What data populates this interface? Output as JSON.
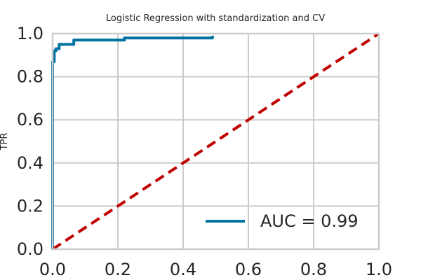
{
  "chart_data": {
    "type": "line",
    "title": "Logistic Regression with standardization and CV",
    "xlabel": "",
    "ylabel": "TPR",
    "xlim": [
      0.0,
      1.0
    ],
    "ylim": [
      0.0,
      1.0
    ],
    "xticks": [
      "0.0",
      "0.2",
      "0.4",
      "0.6",
      "0.8",
      "1.0"
    ],
    "yticks": [
      "0.0",
      "0.2",
      "0.4",
      "0.6",
      "0.8",
      "1.0"
    ],
    "grid": true,
    "legend_position": "lower-right",
    "series": [
      {
        "name": "AUC = 0.99",
        "color": "#0072a0",
        "style": "solid",
        "x": [
          0.0,
          0.0,
          0.005,
          0.005,
          0.01,
          0.01,
          0.02,
          0.02,
          0.03,
          0.03,
          0.065,
          0.065,
          0.22,
          0.22,
          0.49,
          0.49
        ],
        "y": [
          0.0,
          0.87,
          0.87,
          0.92,
          0.92,
          0.93,
          0.93,
          0.95,
          0.95,
          0.95,
          0.95,
          0.97,
          0.97,
          0.98,
          0.98,
          0.99
        ]
      },
      {
        "name": "",
        "color": "#c00000",
        "style": "dashed",
        "x": [
          0.0,
          1.0
        ],
        "y": [
          0.0,
          1.0
        ]
      }
    ]
  }
}
